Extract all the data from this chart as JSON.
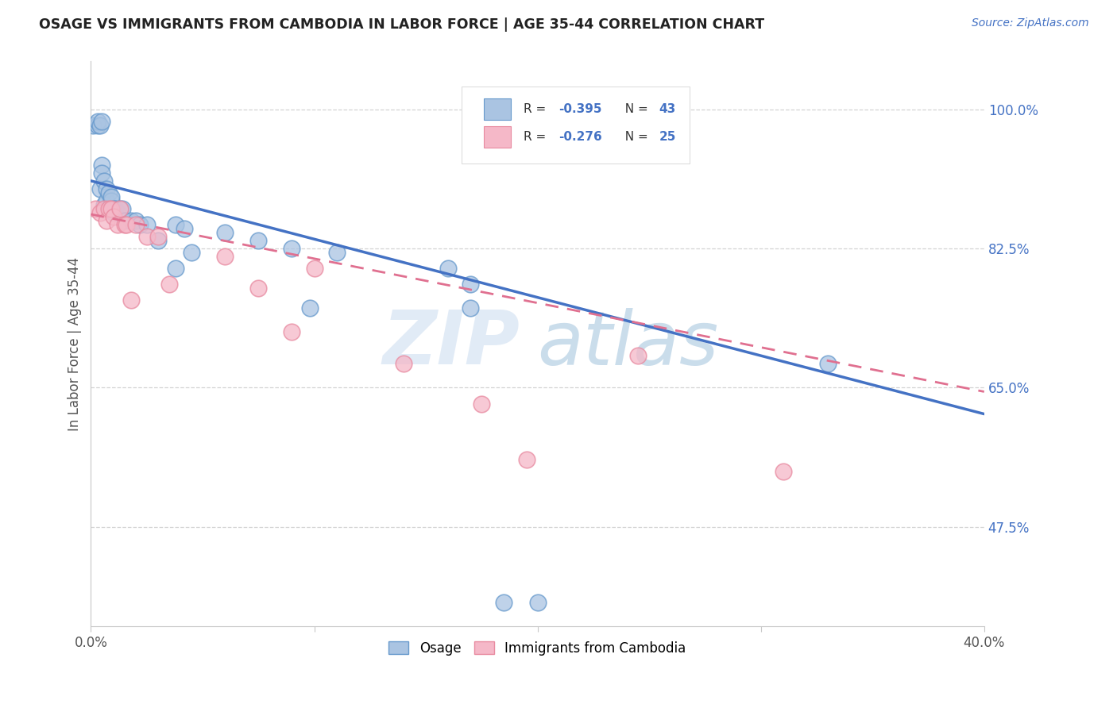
{
  "title": "OSAGE VS IMMIGRANTS FROM CAMBODIA IN LABOR FORCE | AGE 35-44 CORRELATION CHART",
  "source": "Source: ZipAtlas.com",
  "ylabel": "In Labor Force | Age 35-44",
  "xlim": [
    0.0,
    0.4
  ],
  "ylim": [
    0.35,
    1.06
  ],
  "xticks": [
    0.0,
    0.1,
    0.2,
    0.3,
    0.4
  ],
  "xticklabels": [
    "0.0%",
    "",
    "",
    "",
    "40.0%"
  ],
  "yticks_right": [
    1.0,
    0.825,
    0.65,
    0.475
  ],
  "ytick_labels_right": [
    "100.0%",
    "82.5%",
    "65.0%",
    "47.5%"
  ],
  "watermark_zip": "ZIP",
  "watermark_atlas": "atlas",
  "legend_r1": "-0.395",
  "legend_n1": "43",
  "legend_r2": "-0.276",
  "legend_n2": "25",
  "osage_color": "#aac4e2",
  "cambodia_color": "#f5b8c8",
  "osage_edge_color": "#6699cc",
  "cambodia_edge_color": "#e88aa0",
  "osage_line_color": "#4472c4",
  "cambodia_line_color": "#e07090",
  "osage_line_x": [
    0.0,
    0.4
  ],
  "osage_line_y": [
    0.91,
    0.617
  ],
  "cambodia_line_x": [
    0.0,
    0.4
  ],
  "cambodia_line_y": [
    0.868,
    0.645
  ],
  "osage_x": [
    0.001,
    0.003,
    0.003,
    0.004,
    0.004,
    0.005,
    0.005,
    0.005,
    0.006,
    0.006,
    0.007,
    0.007,
    0.008,
    0.008,
    0.009,
    0.009,
    0.01,
    0.01,
    0.011,
    0.012,
    0.013,
    0.014,
    0.015,
    0.018,
    0.02,
    0.022,
    0.025,
    0.03,
    0.038,
    0.042,
    0.06,
    0.075,
    0.09,
    0.11,
    0.185,
    0.2,
    0.16,
    0.17,
    0.33,
    0.17,
    0.038,
    0.098,
    0.045
  ],
  "osage_y": [
    0.98,
    0.98,
    0.985,
    0.98,
    0.9,
    0.93,
    0.92,
    0.985,
    0.88,
    0.91,
    0.885,
    0.9,
    0.875,
    0.895,
    0.885,
    0.89,
    0.875,
    0.87,
    0.875,
    0.87,
    0.875,
    0.875,
    0.86,
    0.86,
    0.86,
    0.855,
    0.855,
    0.835,
    0.855,
    0.85,
    0.845,
    0.835,
    0.825,
    0.82,
    0.38,
    0.38,
    0.8,
    0.78,
    0.68,
    0.75,
    0.8,
    0.75,
    0.82
  ],
  "cambodia_x": [
    0.002,
    0.004,
    0.006,
    0.007,
    0.008,
    0.009,
    0.01,
    0.012,
    0.013,
    0.015,
    0.016,
    0.018,
    0.02,
    0.025,
    0.03,
    0.035,
    0.06,
    0.075,
    0.09,
    0.1,
    0.14,
    0.175,
    0.195,
    0.245,
    0.31
  ],
  "cambodia_y": [
    0.875,
    0.87,
    0.875,
    0.86,
    0.875,
    0.875,
    0.865,
    0.855,
    0.875,
    0.855,
    0.855,
    0.76,
    0.855,
    0.84,
    0.84,
    0.78,
    0.815,
    0.775,
    0.72,
    0.8,
    0.68,
    0.63,
    0.56,
    0.69,
    0.545
  ],
  "background_color": "#ffffff",
  "grid_color": "#c8c8c8",
  "title_color": "#222222",
  "right_axis_color": "#4472c4",
  "label_color": "#555555"
}
